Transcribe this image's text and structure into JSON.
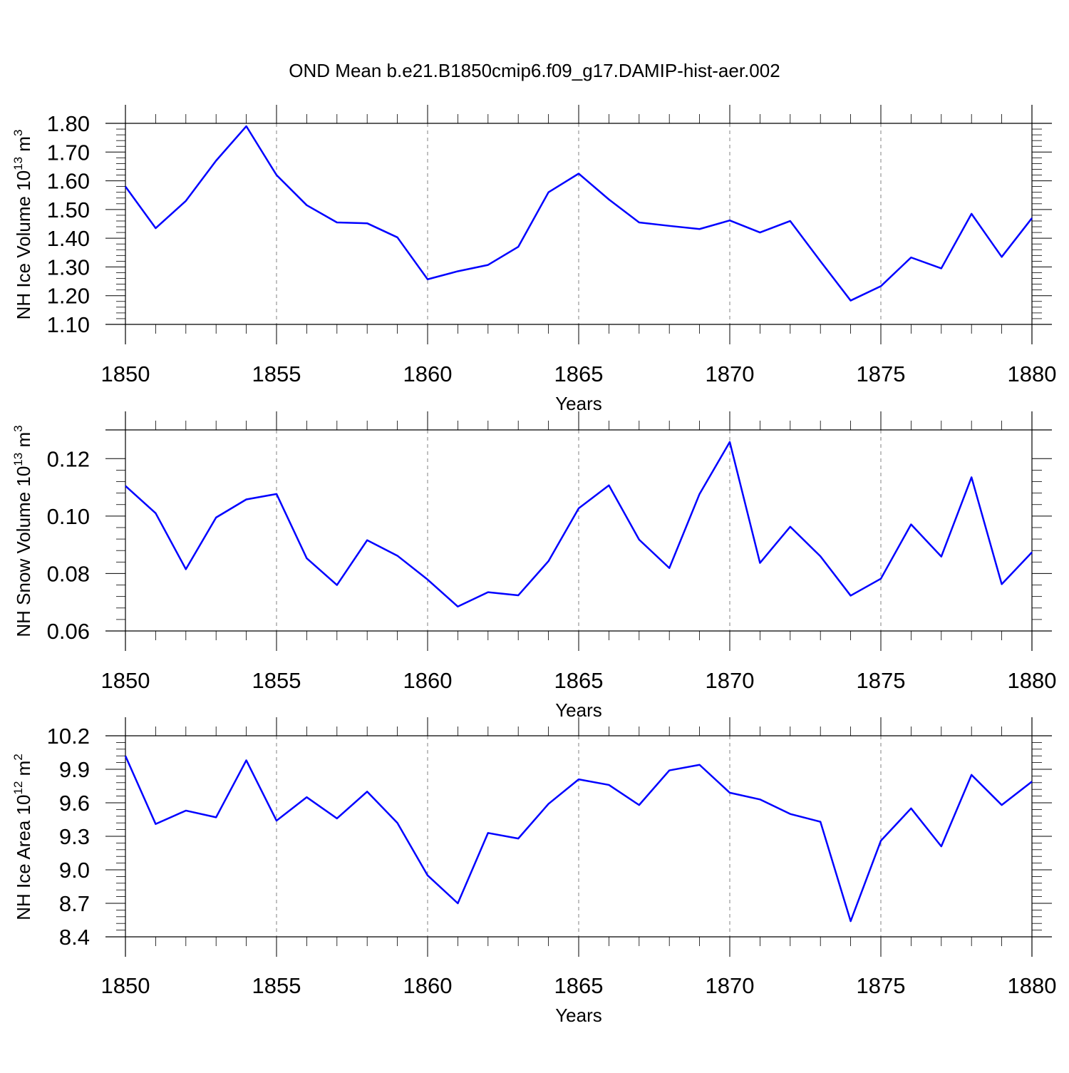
{
  "title": "OND Mean b.e21.B1850cmip6.f09_g17.DAMIP-hist-aer.002",
  "colors": {
    "line": "#0000ff",
    "axis": "#000000",
    "grid": "#808080"
  },
  "chart_data": [
    {
      "type": "line",
      "ylabel": "NH Ice Volume 10",
      "ylabel_sup": "13",
      "ylabel_unit": " m",
      "ylabel_unit_sup": "3",
      "xlabel": "Years",
      "xlim": [
        1850,
        1880
      ],
      "ylim": [
        1.1,
        1.8
      ],
      "ytick_values": [
        1.1,
        1.2,
        1.3,
        1.4,
        1.5,
        1.6,
        1.7,
        1.8
      ],
      "ytick_labels": [
        "1.10",
        "1.20",
        "1.30",
        "1.40",
        "1.50",
        "1.60",
        "1.70",
        "1.80"
      ],
      "xtick_values": [
        1850,
        1855,
        1860,
        1865,
        1870,
        1875,
        1880
      ],
      "xtick_labels": [
        "1850",
        "1855",
        "1860",
        "1865",
        "1870",
        "1875",
        "1880"
      ],
      "x": [
        1850,
        1851,
        1852,
        1853,
        1854,
        1855,
        1856,
        1857,
        1858,
        1859,
        1860,
        1861,
        1862,
        1863,
        1864,
        1865,
        1866,
        1867,
        1868,
        1869,
        1870,
        1871,
        1872,
        1873,
        1874,
        1875,
        1876,
        1877,
        1878,
        1879,
        1880
      ],
      "series": [
        {
          "name": "NH Ice Volume",
          "values": [
            1.58,
            1.435,
            1.53,
            1.67,
            1.79,
            1.62,
            1.515,
            1.455,
            1.452,
            1.403,
            1.257,
            1.285,
            1.307,
            1.37,
            1.56,
            1.625,
            1.535,
            1.455,
            1.443,
            1.432,
            1.462,
            1.42,
            1.46,
            1.32,
            1.183,
            1.233,
            1.333,
            1.295,
            1.485,
            1.335,
            1.47
          ]
        }
      ]
    },
    {
      "type": "line",
      "ylabel": "NH Snow Volume 10",
      "ylabel_sup": "13",
      "ylabel_unit": " m",
      "ylabel_unit_sup": "3",
      "xlabel": "Years",
      "xlim": [
        1850,
        1880
      ],
      "ylim": [
        0.06,
        0.13
      ],
      "ytick_values": [
        0.06,
        0.08,
        0.1,
        0.12
      ],
      "ytick_labels": [
        "0.06",
        "0.08",
        "0.10",
        "0.12"
      ],
      "xtick_values": [
        1850,
        1855,
        1860,
        1865,
        1870,
        1875,
        1880
      ],
      "xtick_labels": [
        "1850",
        "1855",
        "1860",
        "1865",
        "1870",
        "1875",
        "1880"
      ],
      "x": [
        1850,
        1851,
        1852,
        1853,
        1854,
        1855,
        1856,
        1857,
        1858,
        1859,
        1860,
        1861,
        1862,
        1863,
        1864,
        1865,
        1866,
        1867,
        1868,
        1869,
        1870,
        1871,
        1872,
        1873,
        1874,
        1875,
        1876,
        1877,
        1878,
        1879,
        1880
      ],
      "series": [
        {
          "name": "NH Snow Volume",
          "values": [
            0.1105,
            0.101,
            0.0815,
            0.0995,
            0.1058,
            0.1077,
            0.0853,
            0.076,
            0.0916,
            0.0862,
            0.0779,
            0.0685,
            0.0735,
            0.0724,
            0.0843,
            0.1027,
            0.1107,
            0.0918,
            0.0819,
            0.1077,
            0.1258,
            0.0837,
            0.0963,
            0.086,
            0.0723,
            0.0782,
            0.0971,
            0.0859,
            0.1135,
            0.0763,
            0.0874
          ]
        }
      ]
    },
    {
      "type": "line",
      "ylabel": "NH Ice Area 10",
      "ylabel_sup": "12",
      "ylabel_unit": " m",
      "ylabel_unit_sup": "2",
      "xlabel": "Years",
      "xlim": [
        1850,
        1880
      ],
      "ylim": [
        8.4,
        10.2
      ],
      "ytick_values": [
        8.4,
        8.7,
        9.0,
        9.3,
        9.6,
        9.9,
        10.2
      ],
      "ytick_labels": [
        "8.4",
        "8.7",
        "9.0",
        "9.3",
        "9.6",
        "9.9",
        "10.2"
      ],
      "xtick_values": [
        1850,
        1855,
        1860,
        1865,
        1870,
        1875,
        1880
      ],
      "xtick_labels": [
        "1850",
        "1855",
        "1860",
        "1865",
        "1870",
        "1875",
        "1880"
      ],
      "x": [
        1850,
        1851,
        1852,
        1853,
        1854,
        1855,
        1856,
        1857,
        1858,
        1859,
        1860,
        1861,
        1862,
        1863,
        1864,
        1865,
        1866,
        1867,
        1868,
        1869,
        1870,
        1871,
        1872,
        1873,
        1874,
        1875,
        1876,
        1877,
        1878,
        1879,
        1880
      ],
      "series": [
        {
          "name": "NH Ice Area",
          "values": [
            10.02,
            9.41,
            9.53,
            9.47,
            9.98,
            9.44,
            9.65,
            9.46,
            9.7,
            9.42,
            8.95,
            8.7,
            9.33,
            9.28,
            9.59,
            9.81,
            9.76,
            9.58,
            9.89,
            9.94,
            9.69,
            9.63,
            9.5,
            9.43,
            8.54,
            9.26,
            9.55,
            9.21,
            9.85,
            9.58,
            9.79
          ]
        }
      ]
    }
  ]
}
